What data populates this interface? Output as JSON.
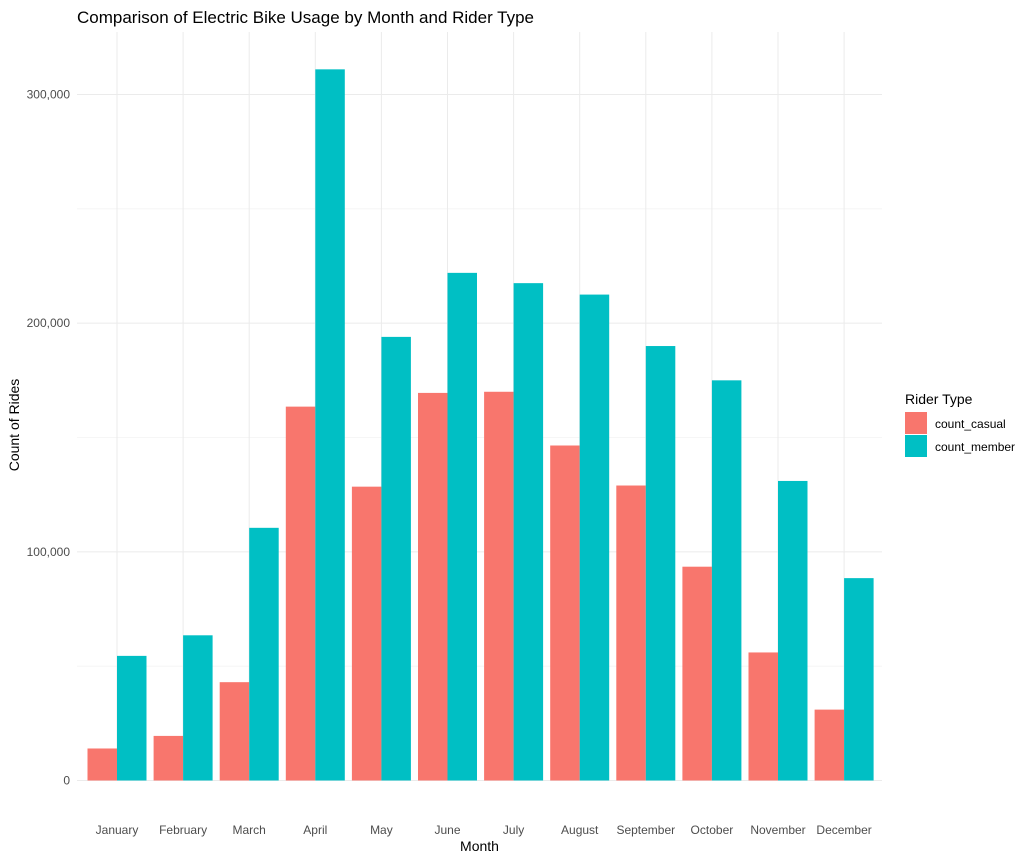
{
  "chart_data": {
    "type": "bar",
    "title": "Comparison of Electric Bike Usage by Month and Rider Type",
    "xlabel": "Month",
    "ylabel": "Count of Rides",
    "categories": [
      "January",
      "February",
      "March",
      "April",
      "May",
      "June",
      "July",
      "August",
      "September",
      "October",
      "November",
      "December"
    ],
    "series": [
      {
        "name": "count_casual",
        "color": "#f8766d",
        "values": [
          14000,
          19500,
          43000,
          163500,
          128500,
          169500,
          170000,
          146500,
          129000,
          93500,
          56000,
          31000
        ]
      },
      {
        "name": "count_member",
        "color": "#00bfc4",
        "values": [
          54500,
          63500,
          110500,
          311000,
          194000,
          222000,
          217500,
          212500,
          190000,
          175000,
          131000,
          88500
        ]
      }
    ],
    "ylim": [
      0,
      327000
    ],
    "yticks": [
      0,
      100000,
      200000,
      300000
    ],
    "ytick_labels": [
      "0",
      "100,000",
      "200,000",
      "300,000"
    ],
    "grid": true,
    "legend": {
      "title": "Rider Type",
      "position": "right"
    }
  }
}
